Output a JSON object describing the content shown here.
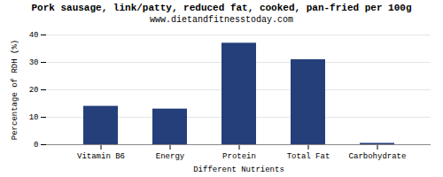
{
  "chart_data": {
    "type": "bar",
    "title": "Pork sausage, link/patty, reduced fat, cooked, pan-fried per 100g",
    "subtitle": "www.dietandfitnesstoday.com",
    "xlabel": "Different Nutrients",
    "ylabel": "Percentage of RDH (%)",
    "categories": [
      "Vitamin B6",
      "Energy",
      "Protein",
      "Total Fat",
      "Carbohydrate"
    ],
    "values": [
      14.0,
      13.0,
      37.0,
      31.0,
      0.5
    ],
    "color": "#253f7a",
    "ylim": [
      0,
      40
    ],
    "yticks": [
      0,
      10,
      20,
      30,
      40
    ],
    "grid": true
  }
}
